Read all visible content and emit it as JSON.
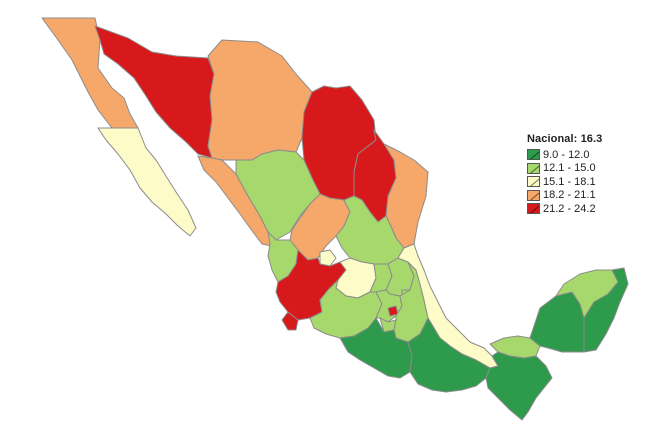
{
  "legend": {
    "title": "Nacional: 16.3",
    "classes": [
      {
        "label": "9.0 - 12.0",
        "color": "#2e9a4b"
      },
      {
        "label": "12.1 - 15.0",
        "color": "#a6d86c"
      },
      {
        "label": "15.1 - 18.1",
        "color": "#fdfbc8"
      },
      {
        "label": "18.2 - 21.1",
        "color": "#f6a76a"
      },
      {
        "label": "21.2 - 24.2",
        "color": "#d7191c"
      }
    ]
  },
  "map": {
    "border_color": "#8c8c8c",
    "background": "#ffffff"
  }
}
